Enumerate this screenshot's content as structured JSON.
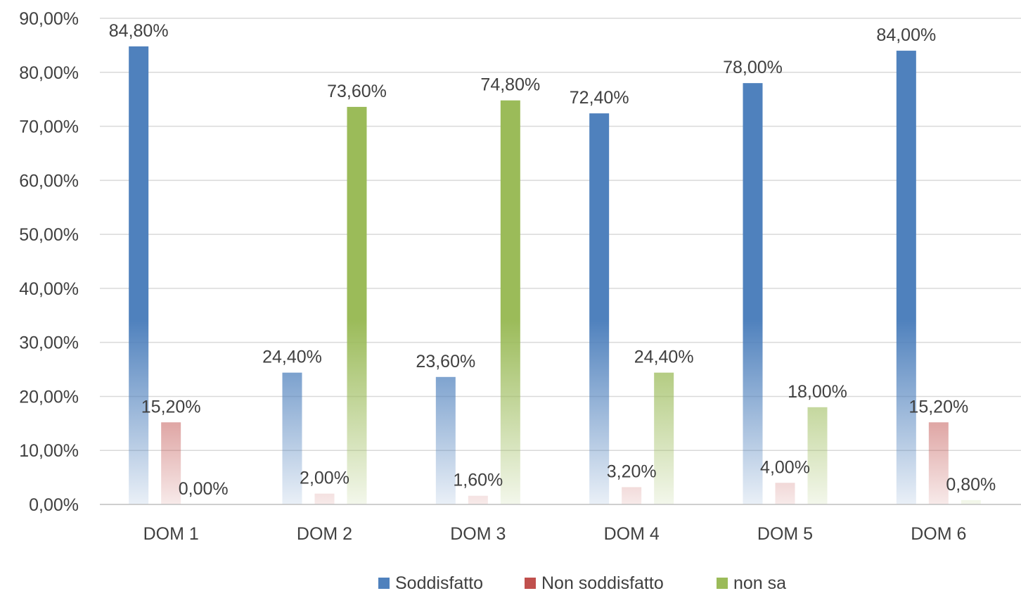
{
  "chart_data": {
    "type": "bar",
    "title": "",
    "xlabel": "",
    "ylabel": "",
    "categories": [
      "DOM 1",
      "DOM 2",
      "DOM 3",
      "DOM 4",
      "DOM 5",
      "DOM 6"
    ],
    "series": [
      {
        "name": "Soddisfatto",
        "color": "#4f81bd",
        "values": [
          84.8,
          24.4,
          23.6,
          72.4,
          78.0,
          84.0
        ],
        "labels": [
          "84,80%",
          "24,40%",
          "23,60%",
          "72,40%",
          "78,00%",
          "84,00%"
        ]
      },
      {
        "name": "Non soddisfatto",
        "color": "#c0504d",
        "values": [
          15.2,
          2.0,
          1.6,
          3.2,
          4.0,
          15.2
        ],
        "labels": [
          "15,20%",
          "2,00%",
          "1,60%",
          "3,20%",
          "4,00%",
          "15,20%"
        ]
      },
      {
        "name": "non sa",
        "color": "#9bbb59",
        "values": [
          0.0,
          73.6,
          74.8,
          24.4,
          18.0,
          0.8
        ],
        "labels": [
          "0,00%",
          "73,60%",
          "74,80%",
          "24,40%",
          "18,00%",
          "0,80%"
        ]
      }
    ],
    "ylim": [
      0,
      90
    ],
    "yticks": [
      0,
      10,
      20,
      30,
      40,
      50,
      60,
      70,
      80,
      90
    ],
    "ytick_labels": [
      "0,00%",
      "10,00%",
      "20,00%",
      "30,00%",
      "40,00%",
      "50,00%",
      "60,00%",
      "70,00%",
      "80,00%",
      "90,00%"
    ],
    "grid": true,
    "legend": "bottom"
  }
}
